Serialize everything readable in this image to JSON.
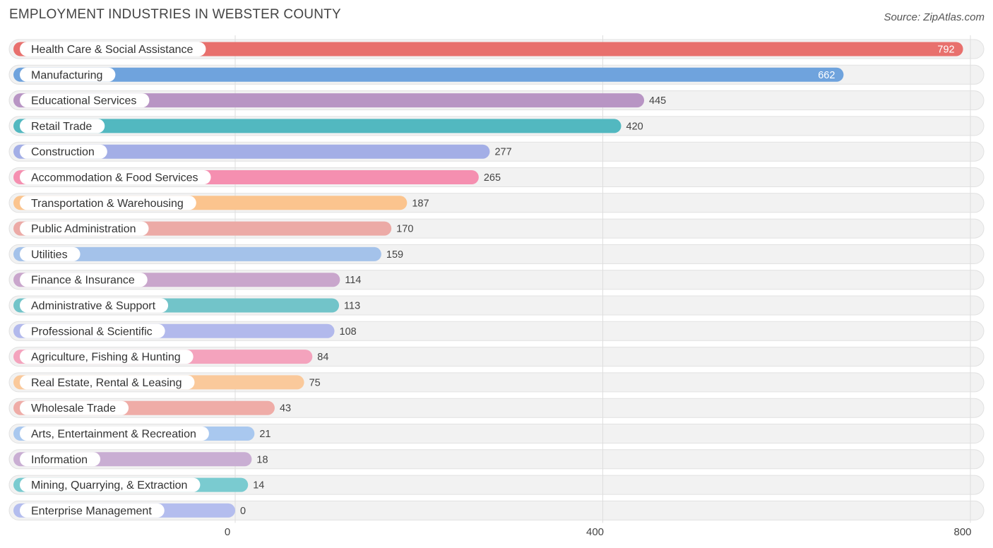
{
  "header": {
    "title": "EMPLOYMENT INDUSTRIES IN WEBSTER COUNTY",
    "source": "Source: ZipAtlas.com"
  },
  "chart_data": {
    "type": "bar",
    "orientation": "horizontal",
    "title": "EMPLOYMENT INDUSTRIES IN WEBSTER COUNTY",
    "xlabel": "",
    "ylabel": "",
    "xlim": [
      0,
      800
    ],
    "xticks": [
      0,
      400,
      800
    ],
    "grid": true,
    "categories": [
      "Health Care & Social Assistance",
      "Manufacturing",
      "Educational Services",
      "Retail Trade",
      "Construction",
      "Accommodation & Food Services",
      "Transportation & Warehousing",
      "Public Administration",
      "Utilities",
      "Finance & Insurance",
      "Administrative & Support",
      "Professional & Scientific",
      "Agriculture, Fishing & Hunting",
      "Real Estate, Rental & Leasing",
      "Wholesale Trade",
      "Arts, Entertainment & Recreation",
      "Information",
      "Mining, Quarrying, & Extraction",
      "Enterprise Management"
    ],
    "values": [
      792,
      662,
      445,
      420,
      277,
      265,
      187,
      170,
      159,
      114,
      113,
      108,
      84,
      75,
      43,
      21,
      18,
      14,
      0
    ],
    "colors": [
      "#e8706d",
      "#6fa3dd",
      "#b895c4",
      "#52b8c0",
      "#a3aee6",
      "#f58fb0",
      "#fbc48e",
      "#ecaaa6",
      "#a4c2ea",
      "#c9a6cc",
      "#72c4c9",
      "#b2b9ec",
      "#f4a3bd",
      "#fac99b",
      "#efaca7",
      "#a9c8ef",
      "#c9aed3",
      "#7acbd0",
      "#b4bdee"
    ]
  }
}
